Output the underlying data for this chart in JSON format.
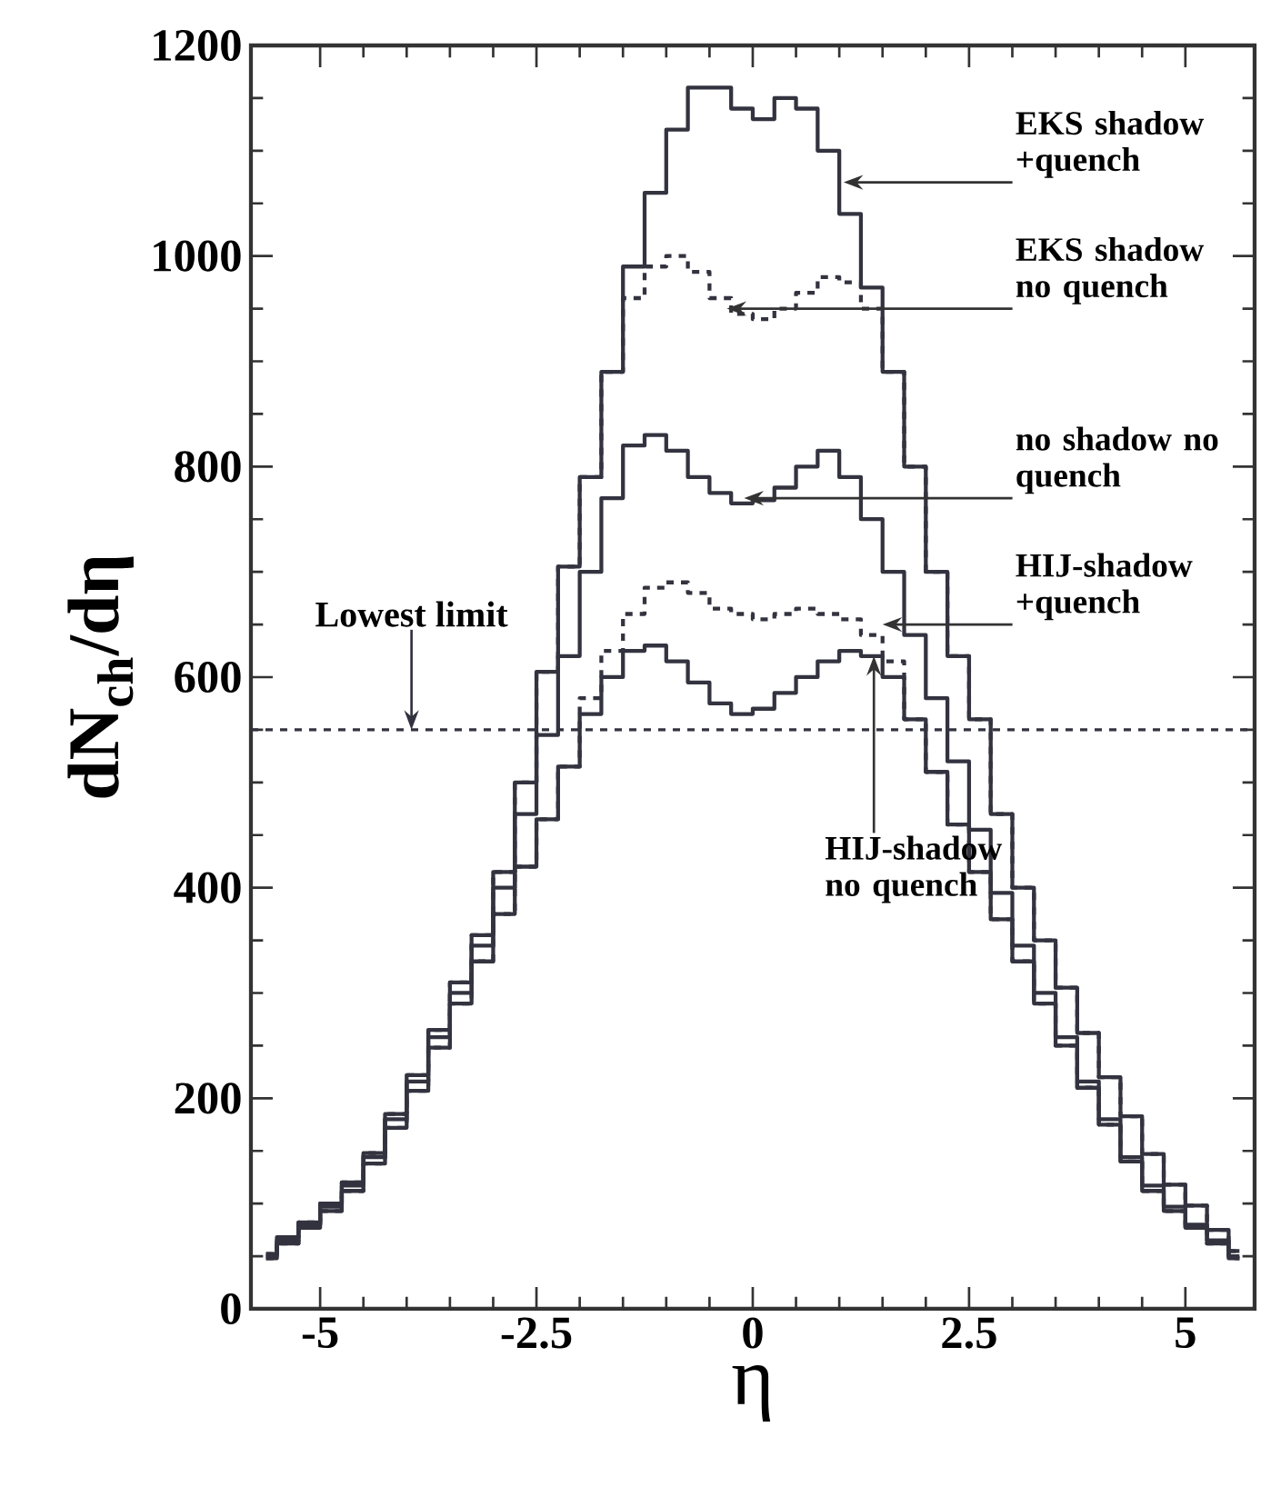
{
  "chart_data": {
    "type": "step",
    "xlabel": "η",
    "ylabel": "dN$_{ch}$/dη",
    "x": [
      -5.625,
      -5.375,
      -5.125,
      -4.875,
      -4.625,
      -4.375,
      -4.125,
      -3.875,
      -3.625,
      -3.375,
      -3.125,
      -2.875,
      -2.625,
      -2.375,
      -2.125,
      -1.875,
      -1.625,
      -1.375,
      -1.125,
      -0.875,
      -0.625,
      -0.375,
      -0.125,
      0.125,
      0.375,
      0.625,
      0.875,
      1.125,
      1.375,
      1.625,
      1.875,
      2.125,
      2.375,
      2.625,
      2.875,
      3.125,
      3.375,
      3.625,
      3.875,
      4.125,
      4.375,
      4.625,
      4.875,
      5.125,
      5.375,
      5.625
    ],
    "series": [
      {
        "color": "#333340",
        "line_style": "solid",
        "values": [
          52,
          68,
          82,
          100,
          120,
          148,
          185,
          222,
          265,
          310,
          355,
          415,
          500,
          605,
          705,
          790,
          890,
          990,
          1060,
          1120,
          1160,
          1160,
          1140,
          1130,
          1150,
          1140,
          1100,
          1040,
          970,
          890,
          800,
          700,
          620,
          560,
          470,
          400,
          350,
          305,
          262,
          220,
          183,
          147,
          118,
          98,
          75,
          55
        ]
      },
      {
        "color": "#333340",
        "line_style": "dashed",
        "values": [
          52,
          68,
          82,
          100,
          120,
          148,
          185,
          222,
          265,
          310,
          355,
          415,
          500,
          605,
          705,
          790,
          890,
          960,
          990,
          1000,
          985,
          960,
          945,
          940,
          950,
          965,
          980,
          975,
          950,
          890,
          800,
          700,
          620,
          560,
          470,
          400,
          350,
          305,
          262,
          220,
          183,
          147,
          118,
          98,
          75,
          55
        ]
      },
      {
        "color": "#333340",
        "line_style": "solid",
        "values": [
          50,
          65,
          80,
          97,
          117,
          144,
          180,
          216,
          258,
          300,
          345,
          400,
          470,
          545,
          620,
          700,
          770,
          820,
          830,
          815,
          790,
          775,
          765,
          768,
          780,
          800,
          815,
          790,
          750,
          700,
          640,
          580,
          520,
          455,
          395,
          345,
          300,
          258,
          216,
          180,
          144,
          117,
          97,
          80,
          65,
          50
        ]
      },
      {
        "color": "#333340",
        "line_style": "dashed",
        "values": [
          48,
          62,
          77,
          93,
          112,
          138,
          172,
          207,
          248,
          290,
          330,
          375,
          420,
          465,
          515,
          580,
          625,
          660,
          685,
          690,
          680,
          665,
          660,
          655,
          660,
          665,
          660,
          655,
          640,
          615,
          560,
          510,
          460,
          415,
          370,
          330,
          290,
          250,
          210,
          175,
          140,
          112,
          93,
          77,
          62,
          48
        ]
      },
      {
        "color": "#333340",
        "line_style": "solid",
        "values": [
          48,
          62,
          77,
          93,
          112,
          138,
          172,
          207,
          248,
          290,
          330,
          375,
          420,
          465,
          515,
          565,
          600,
          625,
          630,
          615,
          595,
          575,
          565,
          570,
          585,
          600,
          615,
          625,
          620,
          600,
          560,
          510,
          460,
          415,
          370,
          330,
          290,
          250,
          210,
          175,
          140,
          112,
          93,
          77,
          62,
          48
        ]
      }
    ],
    "xlim": [
      -5.8,
      5.8
    ],
    "ylim": [
      0,
      1200
    ],
    "xticks": [
      -5,
      {
        "value": -2.5,
        "label": "-2.5"
      },
      0,
      {
        "value": 2.5,
        "label": "2.5"
      },
      5
    ],
    "yticks": [
      0,
      200,
      400,
      600,
      800,
      1000,
      1200
    ],
    "ref_lines": [
      {
        "axis": "y",
        "value": 550,
        "label": "Lowest limit",
        "line_style": "dashed",
        "color": "#333340"
      }
    ],
    "annotations": [
      {
        "text": "EKS shadow +quench",
        "x": 1.05,
        "y": 1070
      },
      {
        "text": "EKS shadow no quench",
        "x": -0.3,
        "y": 950
      },
      {
        "text": "no shadow no quench",
        "x": -0.1,
        "y": 770
      },
      {
        "text": "HIJ-shadow +quench",
        "x": 1.5,
        "y": 650
      },
      {
        "text": "HIJ-shadow no quench",
        "x": 1.4,
        "y": 620
      }
    ]
  }
}
